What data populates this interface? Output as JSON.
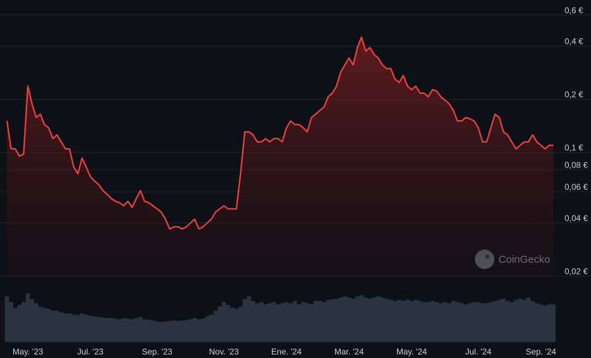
{
  "chart_data": [
    {
      "type": "line",
      "log_scale": true,
      "grid": true,
      "color": "#f4433c",
      "watermark": "CoinGecko",
      "categories": [
        null,
        null,
        null,
        null,
        null,
        "May. '23",
        null,
        null,
        null,
        null,
        null,
        null,
        null,
        null,
        null,
        null,
        null,
        null,
        null,
        null,
        "Jul. '23",
        null,
        null,
        null,
        null,
        null,
        null,
        null,
        null,
        null,
        null,
        null,
        null,
        null,
        null,
        null,
        "Sep. '23",
        null,
        null,
        null,
        null,
        null,
        null,
        null,
        null,
        null,
        null,
        null,
        null,
        null,
        null,
        null,
        "Nov. '23",
        null,
        null,
        null,
        null,
        null,
        null,
        null,
        null,
        null,
        null,
        null,
        null,
        null,
        null,
        "Ene. '24",
        null,
        null,
        null,
        null,
        null,
        null,
        null,
        null,
        null,
        null,
        null,
        null,
        null,
        null,
        "Mar. '24",
        null,
        null,
        null,
        null,
        null,
        null,
        null,
        null,
        null,
        null,
        null,
        null,
        null,
        null,
        "May. '24",
        null,
        null,
        null,
        null,
        null,
        null,
        null,
        null,
        null,
        null,
        null,
        null,
        null,
        null,
        null,
        "Jul. '24",
        null,
        null,
        null,
        null,
        null,
        null,
        null,
        null,
        null,
        null,
        null,
        null,
        null,
        null,
        "Sep. '24",
        null,
        null,
        null
      ],
      "values": [
        0.151,
        0.105,
        0.105,
        0.0955,
        0.098,
        0.238,
        0.189,
        0.158,
        0.165,
        0.144,
        0.138,
        0.12,
        0.126,
        0.115,
        0.105,
        0.105,
        0.083,
        0.076,
        0.093,
        0.083,
        0.073,
        0.069,
        0.066,
        0.061,
        0.058,
        0.055,
        0.053,
        0.052,
        0.05,
        0.053,
        0.049,
        0.055,
        0.061,
        0.053,
        0.052,
        0.05,
        0.048,
        0.046,
        0.042,
        0.037,
        0.038,
        0.038,
        0.037,
        0.038,
        0.04,
        0.042,
        0.037,
        0.038,
        0.04,
        0.042,
        0.046,
        0.048,
        0.05,
        0.048,
        0.048,
        0.048,
        0.076,
        0.131,
        0.131,
        0.126,
        0.115,
        0.115,
        0.12,
        0.115,
        0.12,
        0.12,
        0.115,
        0.138,
        0.151,
        0.144,
        0.144,
        0.138,
        0.131,
        0.158,
        0.165,
        0.173,
        0.181,
        0.207,
        0.217,
        0.238,
        0.285,
        0.313,
        0.343,
        0.313,
        0.393,
        0.45,
        0.375,
        0.393,
        0.359,
        0.343,
        0.313,
        0.299,
        0.299,
        0.261,
        0.249,
        0.273,
        0.238,
        0.227,
        0.238,
        0.217,
        0.217,
        0.207,
        0.227,
        0.223,
        0.207,
        0.198,
        0.189,
        0.173,
        0.151,
        0.151,
        0.158,
        0.155,
        0.151,
        0.138,
        0.115,
        0.115,
        0.138,
        0.165,
        0.158,
        0.131,
        0.126,
        0.115,
        0.105,
        0.11,
        0.115,
        0.115,
        0.126,
        0.115,
        0.11,
        0.105,
        0.11,
        0.11
      ],
      "ylim": [
        0.0195,
        0.73
      ],
      "yticks": [
        {
          "value": 0.6,
          "label": "0,6 €"
        },
        {
          "value": 0.4,
          "label": "0,4 €"
        },
        {
          "value": 0.2,
          "label": "0,2 €"
        },
        {
          "value": 0.1,
          "label": "0,1 €"
        },
        {
          "value": 0.08,
          "label": "0,08 €"
        },
        {
          "value": 0.06,
          "label": "0,06 €"
        },
        {
          "value": 0.04,
          "label": "0,04 €"
        },
        {
          "value": 0.02,
          "label": "0,02 €"
        }
      ]
    },
    {
      "type": "bar",
      "color": "#2a3441",
      "ylim": [
        0,
        100
      ],
      "values": [
        80,
        70,
        60,
        65,
        70,
        85,
        75,
        68,
        62,
        60,
        58,
        55,
        55,
        52,
        50,
        50,
        48,
        47,
        50,
        48,
        46,
        45,
        44,
        43,
        42,
        42,
        41,
        40,
        42,
        41,
        40,
        42,
        44,
        40,
        39,
        38,
        36,
        35,
        36,
        37,
        38,
        37,
        38,
        38,
        40,
        42,
        40,
        41,
        45,
        48,
        55,
        62,
        70,
        65,
        60,
        58,
        62,
        75,
        80,
        72,
        68,
        70,
        66,
        68,
        70,
        66,
        68,
        70,
        68,
        72,
        66,
        70,
        68,
        66,
        72,
        72,
        70,
        74,
        75,
        76,
        78,
        80,
        78,
        76,
        80,
        82,
        78,
        76,
        78,
        80,
        78,
        76,
        74,
        72,
        74,
        72,
        74,
        72,
        74,
        72,
        70,
        70,
        72,
        70,
        68,
        70,
        68,
        72,
        70,
        68,
        66,
        68,
        70,
        70,
        68,
        68,
        70,
        72,
        74,
        76,
        72,
        70,
        74,
        76,
        74,
        78,
        72,
        68,
        66,
        64,
        66,
        66
      ]
    }
  ]
}
